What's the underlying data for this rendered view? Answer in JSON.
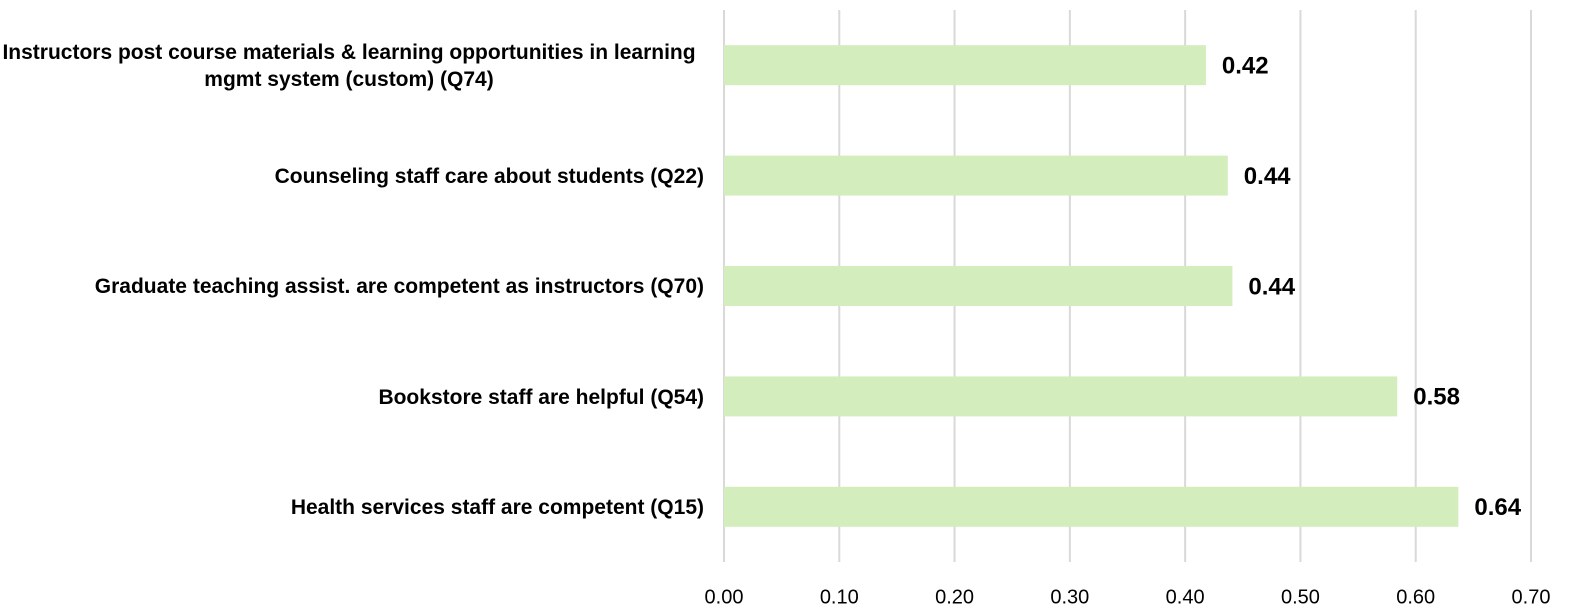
{
  "chart_data": {
    "type": "barh",
    "categories": [
      "Instructors post course materials & learning opportunities in learning mgmt system (custom) (Q74)",
      "Counseling staff care about students (Q22)",
      "Graduate teaching assist. are competent as instructors (Q70)",
      "Bookstore staff are helpful (Q54)",
      "Health services staff are competent (Q15)"
    ],
    "values": [
      0.418,
      0.437,
      0.441,
      0.584,
      0.637
    ],
    "value_labels": [
      "0.42",
      "0.44",
      "0.44",
      "0.58",
      "0.64"
    ],
    "color": "#d4edbc",
    "xlim": [
      0,
      0.7
    ],
    "xticks": [
      {
        "value": 0,
        "label": "0.00"
      },
      {
        "value": 0.1,
        "label": "0.10"
      },
      {
        "value": 0.2,
        "label": "0.20"
      },
      {
        "value": 0.3,
        "label": "0.30"
      },
      {
        "value": 0.4,
        "label": "0.40"
      },
      {
        "value": 0.5,
        "label": "0.50"
      },
      {
        "value": 0.6,
        "label": "0.60"
      },
      {
        "value": 0.7,
        "label": "0.70"
      }
    ],
    "grid": true
  }
}
